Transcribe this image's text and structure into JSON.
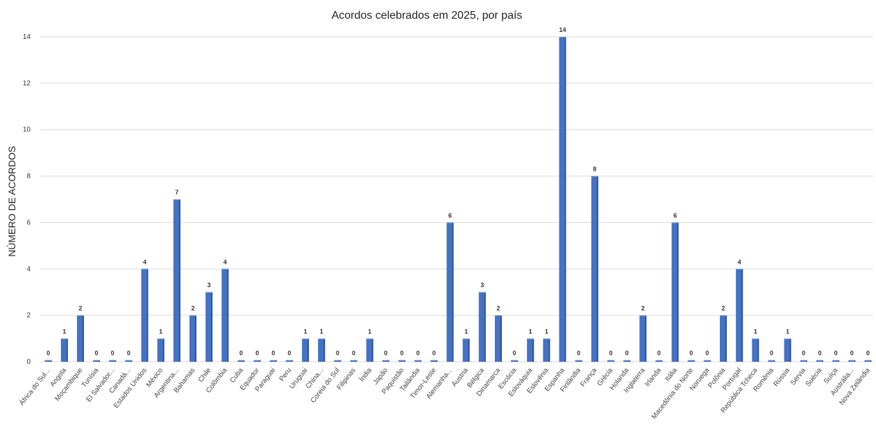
{
  "chart_data": {
    "type": "bar",
    "title": "Acordos celebrados em 2025, por país",
    "xlabel": "",
    "ylabel": "NÚMERO DE ACORDOS",
    "ylim": [
      0,
      14
    ],
    "yticks": [
      0,
      2,
      4,
      6,
      8,
      10,
      12,
      14
    ],
    "grid": true,
    "bar_color": "#4472c4",
    "bar_side_color": "#2f5597",
    "categories": [
      "África do Sul...",
      "Angola",
      "Moçambique",
      "Tunísia",
      "El Salvador...",
      "Canadá...",
      "Estados Unidos",
      "México",
      "Argentina...",
      "Bahamas",
      "Chile",
      "Colômbia",
      "Cuba",
      "Equador",
      "Paraguai",
      "Peru",
      "Uruguai",
      "China...",
      "Coreia do Sul",
      "Filipinas",
      "Índia",
      "Japão",
      "Paquistão",
      "Tailândia",
      "Timor-Leste",
      "Alemanha...",
      "Áustria",
      "Bélgica",
      "Dinamarca",
      "Escócia",
      "Eslováquia",
      "Eslovênia",
      "Espanha",
      "Finlândia",
      "França",
      "Grécia",
      "Holanda",
      "Inglaterra",
      "Irlanda",
      "Itália",
      "Macedônia do Norte",
      "Noruega",
      "Polônia",
      "Portugal",
      "República Tcheca",
      "Romênia",
      "Rússia",
      "Sérvia",
      "Suécia",
      "Suíça",
      "Austrália...",
      "Nova Zelândia"
    ],
    "values": [
      0,
      1,
      2,
      0,
      0,
      0,
      4,
      1,
      7,
      2,
      3,
      4,
      0,
      0,
      0,
      0,
      1,
      1,
      0,
      0,
      1,
      0,
      0,
      0,
      0,
      6,
      1,
      3,
      2,
      0,
      1,
      1,
      14,
      0,
      8,
      0,
      0,
      2,
      0,
      6,
      0,
      0,
      2,
      4,
      1,
      0,
      1,
      0,
      0,
      0,
      0,
      0
    ]
  }
}
